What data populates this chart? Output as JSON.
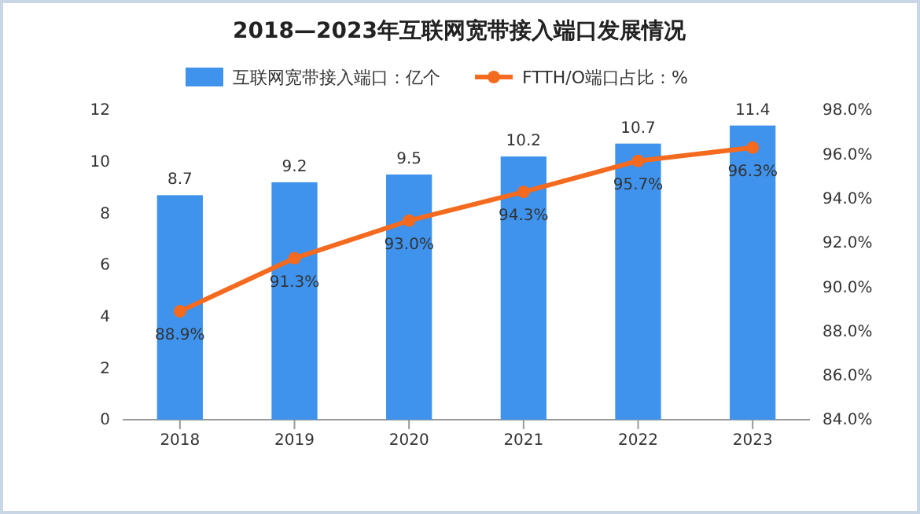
{
  "chart_data": {
    "type": "bar",
    "title": "2018—2023年互联网宽带接入端口发展情况",
    "categories": [
      "2018",
      "2019",
      "2020",
      "2021",
      "2022",
      "2023"
    ],
    "series": [
      {
        "name": "互联网宽带接入端口：亿个",
        "color": "#3f93ec",
        "values": [
          8.7,
          9.2,
          9.5,
          10.2,
          10.7,
          11.4
        ],
        "value_labels": [
          "8.7",
          "9.2",
          "9.5",
          "10.2",
          "10.7",
          "11.4"
        ]
      },
      {
        "name": "FTTH/O端口占比：%",
        "type": "line",
        "axis": "y2",
        "color": "#f46a1f",
        "marker": "circle",
        "values": [
          88.9,
          91.3,
          93.0,
          94.3,
          95.7,
          96.3
        ],
        "value_labels": [
          "88.9%",
          "91.3%",
          "93.0%",
          "94.3%",
          "95.7%",
          "96.3%"
        ]
      }
    ],
    "ylim": [
      0,
      12
    ],
    "yticks": [
      0,
      2,
      4,
      6,
      8,
      10,
      12
    ],
    "y2lim": [
      84,
      98
    ],
    "y2ticks": [
      {
        "value": 84,
        "label": "84.0%"
      },
      {
        "value": 86,
        "label": "86.0%"
      },
      {
        "value": 88,
        "label": "88.0%"
      },
      {
        "value": 90,
        "label": "90.0%"
      },
      {
        "value": 92,
        "label": "92.0%"
      },
      {
        "value": 94,
        "label": "94.0%"
      },
      {
        "value": 96,
        "label": "96.0%"
      },
      {
        "value": 98,
        "label": "98.0%"
      }
    ],
    "legend": "top",
    "grid": false
  }
}
